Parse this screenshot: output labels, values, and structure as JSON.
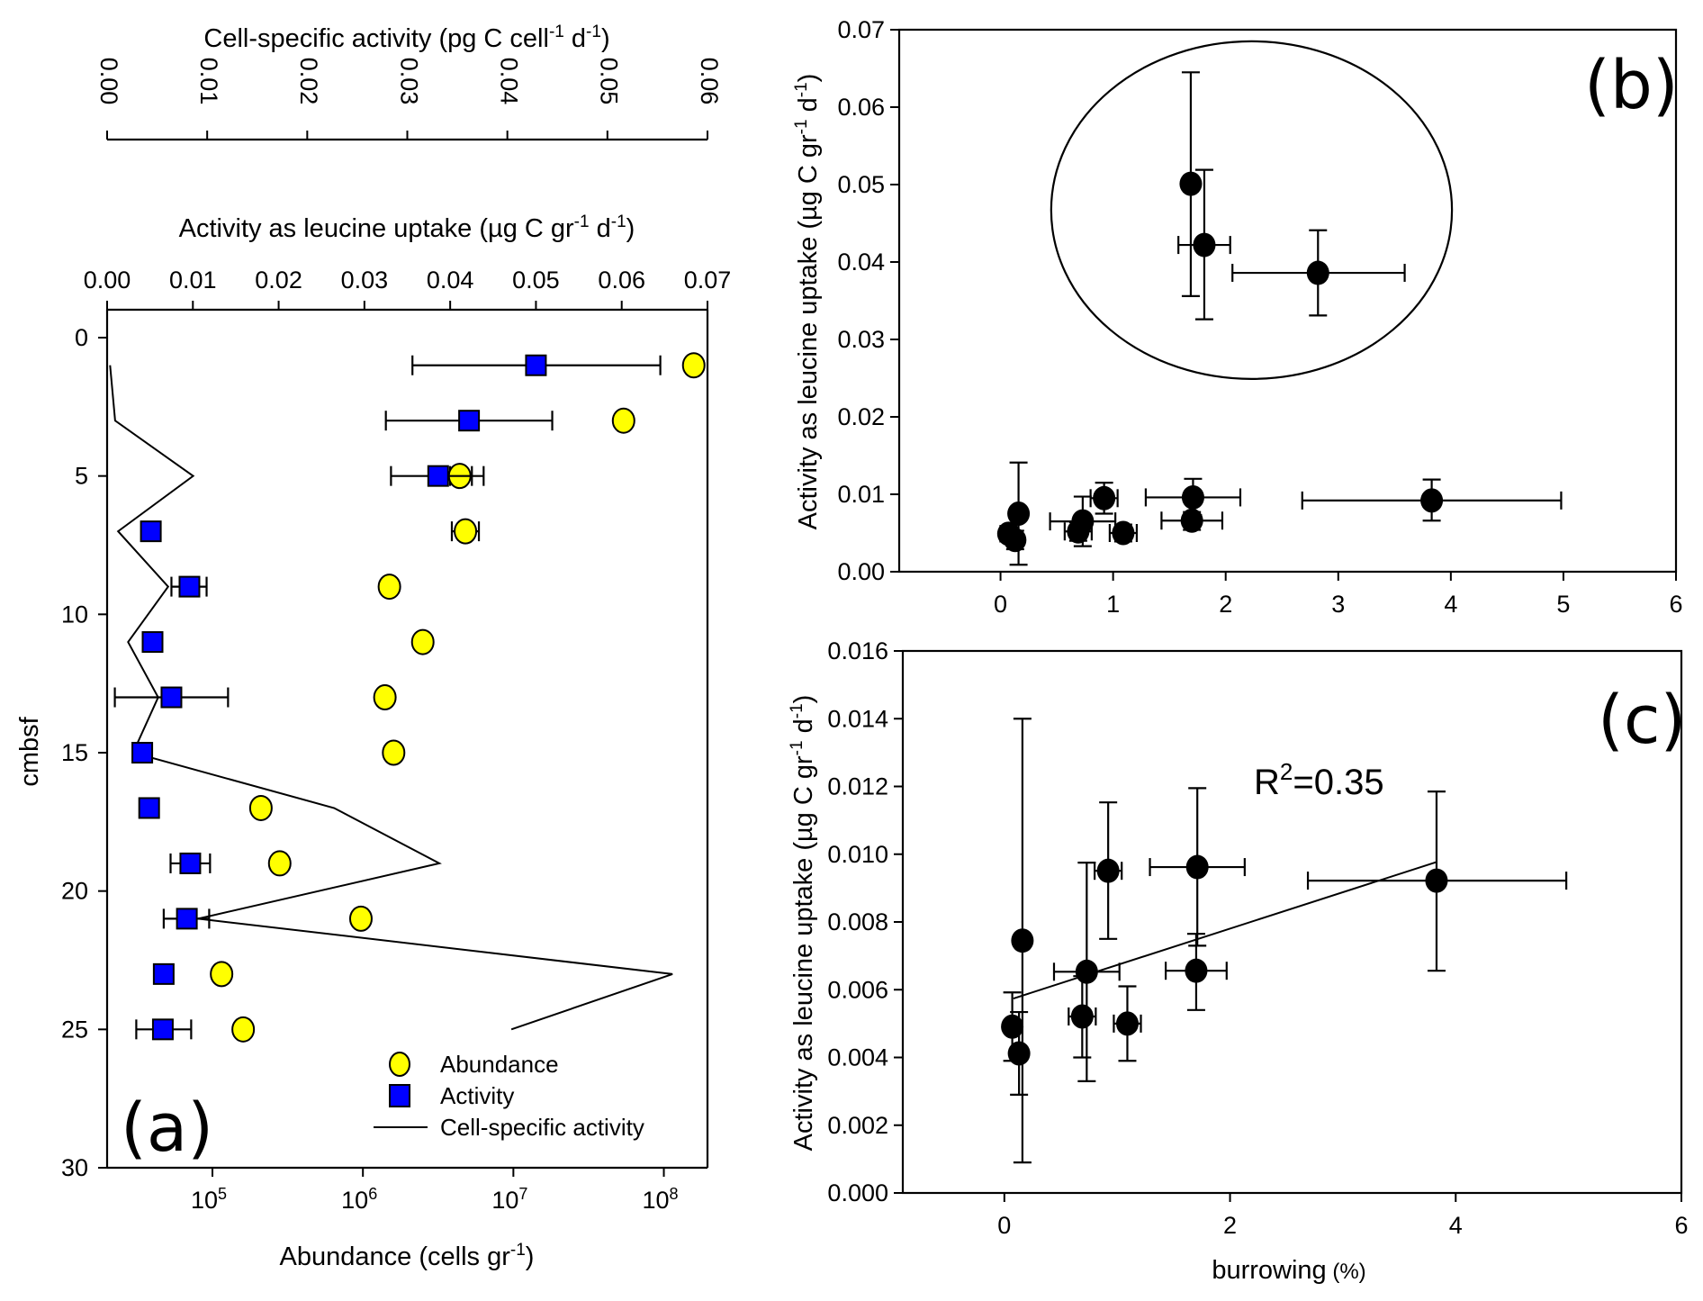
{
  "chart_data": [
    {
      "panel": "(a)",
      "type": "scatter",
      "ylabel": "cmbsf",
      "ylim": [
        0,
        30
      ],
      "yticks": [
        "0",
        "5",
        "10",
        "15",
        "20",
        "25",
        "30"
      ],
      "axes": {
        "top_outer": {
          "label": "Cell-specific activity (pg C cell-1 d-1)",
          "label_main": "Cell-specific activity (pg C cell",
          "label_sup1": "-1",
          "label_mid": " d",
          "label_sup2": "-1",
          "label_end": ")",
          "range": [
            0,
            0.06
          ],
          "ticks": [
            "0.00",
            "0.01",
            "0.02",
            "0.03",
            "0.04",
            "0.05",
            "0.06"
          ]
        },
        "top_inner": {
          "label": "Activity as leucine uptake (µg C gr-1 d-1)",
          "label_main": "Activity as leucine uptake  (µg C gr",
          "label_sup1": "-1",
          "label_mid": " d",
          "label_sup2": "-1",
          "label_end": ")",
          "range": [
            0,
            0.07
          ],
          "ticks": [
            "0.00",
            "0.01",
            "0.02",
            "0.03",
            "0.04",
            "0.05",
            "0.06",
            "0.07"
          ]
        },
        "bottom": {
          "label": "Abundance (cells gr-1)",
          "label_main": "Abundance (cells gr",
          "label_sup": "-1",
          "label_end": ")",
          "scale": "log",
          "range_log10": [
            4.3,
            8.29
          ],
          "ticks": [
            {
              "base": "10",
              "exp": "5"
            },
            {
              "base": "10",
              "exp": "6"
            },
            {
              "base": "10",
              "exp": "7"
            },
            {
              "base": "10",
              "exp": "8"
            }
          ]
        }
      },
      "series": [
        {
          "name": "Abundance",
          "marker": "circle",
          "color": "#ffff00",
          "axis": "bottom",
          "points": [
            {
              "depth": 1,
              "value": 158000000.0
            },
            {
              "depth": 3,
              "value": 54000000.0
            },
            {
              "depth": 5,
              "value": 4400000.0,
              "err": [
                3800000.0,
                5300000.0
              ]
            },
            {
              "depth": 7,
              "value": 4800000.0,
              "err": [
                3900000.0,
                5900000.0
              ]
            },
            {
              "depth": 9,
              "value": 1500000.0
            },
            {
              "depth": 11,
              "value": 2500000.0
            },
            {
              "depth": 13,
              "value": 1400000.0
            },
            {
              "depth": 15,
              "value": 1600000.0
            },
            {
              "depth": 17,
              "value": 210000.0
            },
            {
              "depth": 19,
              "value": 280000.0
            },
            {
              "depth": 21,
              "value": 970000.0,
              "err": [
                890000.0,
                1060000.0
              ]
            },
            {
              "depth": 23,
              "value": 115000.0
            },
            {
              "depth": 25,
              "value": 160000.0
            }
          ]
        },
        {
          "name": "Activity",
          "marker": "square",
          "color": "#0000ff",
          "axis": "top_inner",
          "points": [
            {
              "depth": 1,
              "value": 0.05,
              "err": [
                0.0356,
                0.0645
              ]
            },
            {
              "depth": 3,
              "value": 0.0422,
              "err": [
                0.0325,
                0.0519
              ]
            },
            {
              "depth": 5,
              "value": 0.0386,
              "err": [
                0.0331,
                0.0439
              ]
            },
            {
              "depth": 7,
              "value": 0.0051
            },
            {
              "depth": 9,
              "value": 0.0096,
              "err": [
                0.0075,
                0.0116
              ]
            },
            {
              "depth": 11,
              "value": 0.0053
            },
            {
              "depth": 13,
              "value": 0.0075,
              "err": [
                0.0009,
                0.0141
              ]
            },
            {
              "depth": 15,
              "value": 0.0041
            },
            {
              "depth": 17,
              "value": 0.0049
            },
            {
              "depth": 19,
              "value": 0.0097,
              "err": [
                0.0074,
                0.012
              ]
            },
            {
              "depth": 21,
              "value": 0.0093,
              "err": [
                0.0066,
                0.0119
              ]
            },
            {
              "depth": 23,
              "value": 0.0066
            },
            {
              "depth": 25,
              "value": 0.0065,
              "err": [
                0.0034,
                0.0098
              ]
            }
          ]
        },
        {
          "name": "Cell-specific activity",
          "marker": "line",
          "color": "#000000",
          "axis": "top_outer",
          "points": [
            {
              "depth": 1,
              "value": 0.0003
            },
            {
              "depth": 3,
              "value": 0.0008
            },
            {
              "depth": 5,
              "value": 0.0086
            },
            {
              "depth": 7,
              "value": 0.0011
            },
            {
              "depth": 9,
              "value": 0.0061
            },
            {
              "depth": 11,
              "value": 0.0021
            },
            {
              "depth": 13,
              "value": 0.0051
            },
            {
              "depth": 15,
              "value": 0.0026
            },
            {
              "depth": 17,
              "value": 0.0227
            },
            {
              "depth": 19,
              "value": 0.0332
            },
            {
              "depth": 21,
              "value": 0.0091
            },
            {
              "depth": 23,
              "value": 0.0565
            },
            {
              "depth": 25,
              "value": 0.0404
            }
          ]
        }
      ],
      "legend": {
        "placement": "bottom-right",
        "entries": [
          "Abundance",
          "Activity",
          "Cell-specific activity"
        ]
      },
      "grid": false
    },
    {
      "panel": "(b)",
      "type": "scatter",
      "xlabel": "",
      "ylabel": "Activity as leucine uptake (µg C gr-1 d-1)",
      "ylabel_main": "Activity as leucine uptake  (µg C gr",
      "ylabel_sup1": "-1",
      "ylabel_mid": " d",
      "ylabel_sup2": "-1",
      "ylabel_end": ")",
      "xlim": [
        -0.9,
        6
      ],
      "ylim": [
        0,
        0.07
      ],
      "xticks": [
        "0",
        "1",
        "2",
        "3",
        "4",
        "5",
        "6"
      ],
      "xtick_values": [
        0,
        1,
        2,
        3,
        4,
        5,
        6
      ],
      "yticks": [
        "0.00",
        "0.01",
        "0.02",
        "0.03",
        "0.04",
        "0.05",
        "0.06",
        "0.07"
      ],
      "ytick_values": [
        0,
        0.01,
        0.02,
        0.03,
        0.04,
        0.05,
        0.06,
        0.07
      ],
      "points": [
        {
          "x": 0.16,
          "y": 0.0075,
          "yerr": [
            0.0009,
            0.0141
          ]
        },
        {
          "x": 0.07,
          "y": 0.0049,
          "yerr": [
            0.0039,
            0.0059
          ]
        },
        {
          "x": 0.13,
          "y": 0.0041,
          "yerr": [
            0.0029,
            0.0053
          ]
        },
        {
          "x": 0.92,
          "y": 0.0095,
          "xerr": [
            0.8,
            1.04
          ],
          "yerr": [
            0.0075,
            0.0115
          ]
        },
        {
          "x": 0.73,
          "y": 0.0065,
          "xerr": [
            0.44,
            1.02
          ],
          "yerr": [
            0.0033,
            0.0097
          ]
        },
        {
          "x": 0.69,
          "y": 0.0052,
          "xerr": [
            0.57,
            0.81
          ],
          "yerr": [
            0.004,
            0.0064
          ]
        },
        {
          "x": 1.09,
          "y": 0.005,
          "xerr": [
            0.97,
            1.21
          ],
          "yerr": [
            0.0039,
            0.0061
          ]
        },
        {
          "x": 1.71,
          "y": 0.0096,
          "xerr": [
            1.29,
            2.13
          ],
          "yerr": [
            0.0073,
            0.012
          ]
        },
        {
          "x": 1.7,
          "y": 0.0066,
          "xerr": [
            1.43,
            1.97
          ],
          "yerr": [
            0.0054,
            0.0077
          ]
        },
        {
          "x": 3.83,
          "y": 0.0092,
          "xerr": [
            2.68,
            4.98
          ],
          "yerr": [
            0.0066,
            0.0119
          ]
        },
        {
          "x": 1.69,
          "y": 0.0501,
          "xerr": [
            1.63,
            1.73
          ],
          "yerr": [
            0.0356,
            0.0645
          ]
        },
        {
          "x": 1.81,
          "y": 0.0422,
          "xerr": [
            1.58,
            2.04
          ],
          "yerr": [
            0.0326,
            0.0519
          ]
        },
        {
          "x": 2.82,
          "y": 0.0386,
          "xerr": [
            2.06,
            3.59
          ],
          "yerr": [
            0.0331,
            0.0441
          ]
        }
      ],
      "annotations": [
        {
          "type": "ellipse",
          "cx": 2.23,
          "cy": 0.0467,
          "rx": 1.78,
          "ry": 0.0218,
          "note": "circled outlier group"
        }
      ],
      "grid": false
    },
    {
      "panel": "(c)",
      "type": "scatter",
      "xlabel": "burrowing (%)",
      "xlabel_main": "burrowing",
      "xlabel_unit": " (%)",
      "ylabel": "Activity as leucine uptake (µg C gr-1 d-1)",
      "ylabel_main": "Activity as leucine uptake  (µg C gr",
      "ylabel_sup1": "-1",
      "ylabel_mid": " d",
      "ylabel_sup2": "-1",
      "ylabel_end": ")",
      "xlim": [
        -0.9,
        6
      ],
      "ylim": [
        0,
        0.016
      ],
      "xticks": [
        "0",
        "2",
        "4",
        "6"
      ],
      "xtick_values": [
        0,
        2,
        4,
        6
      ],
      "yticks": [
        "0.000",
        "0.002",
        "0.004",
        "0.006",
        "0.008",
        "0.010",
        "0.012",
        "0.014",
        "0.016"
      ],
      "ytick_values": [
        0,
        0.002,
        0.004,
        0.006,
        0.008,
        0.01,
        0.012,
        0.014,
        0.016
      ],
      "points": [
        {
          "x": 0.16,
          "y": 0.00745,
          "yerr": [
            0.0009,
            0.014
          ]
        },
        {
          "x": 0.07,
          "y": 0.00491,
          "yerr": [
            0.0039,
            0.00592
          ]
        },
        {
          "x": 0.13,
          "y": 0.00412,
          "yerr": [
            0.0029,
            0.00534
          ]
        },
        {
          "x": 0.92,
          "y": 0.00951,
          "xerr": [
            0.8,
            1.04
          ],
          "yerr": [
            0.0075,
            0.01153
          ]
        },
        {
          "x": 0.73,
          "y": 0.00653,
          "xerr": [
            0.44,
            1.02
          ],
          "yerr": [
            0.0033,
            0.00975
          ]
        },
        {
          "x": 0.69,
          "y": 0.00521,
          "xerr": [
            0.57,
            0.81
          ],
          "yerr": [
            0.004,
            0.0064
          ]
        },
        {
          "x": 1.09,
          "y": 0.005,
          "xerr": [
            0.97,
            1.21
          ],
          "yerr": [
            0.0039,
            0.0061
          ]
        },
        {
          "x": 1.71,
          "y": 0.00962,
          "xerr": [
            1.29,
            2.13
          ],
          "yerr": [
            0.0073,
            0.01195
          ]
        },
        {
          "x": 1.7,
          "y": 0.00656,
          "xerr": [
            1.43,
            1.97
          ],
          "yerr": [
            0.0054,
            0.00765
          ]
        },
        {
          "x": 3.83,
          "y": 0.00922,
          "xerr": [
            2.69,
            4.98
          ],
          "yerr": [
            0.00656,
            0.01185
          ]
        }
      ],
      "regression": {
        "x": [
          0.08,
          3.83
        ],
        "y": [
          0.00574,
          0.00977
        ]
      },
      "annotation_text": "R2=0.35",
      "annotation_main": "R",
      "annotation_sup": "2",
      "annotation_end": "=0.35",
      "grid": false
    }
  ]
}
